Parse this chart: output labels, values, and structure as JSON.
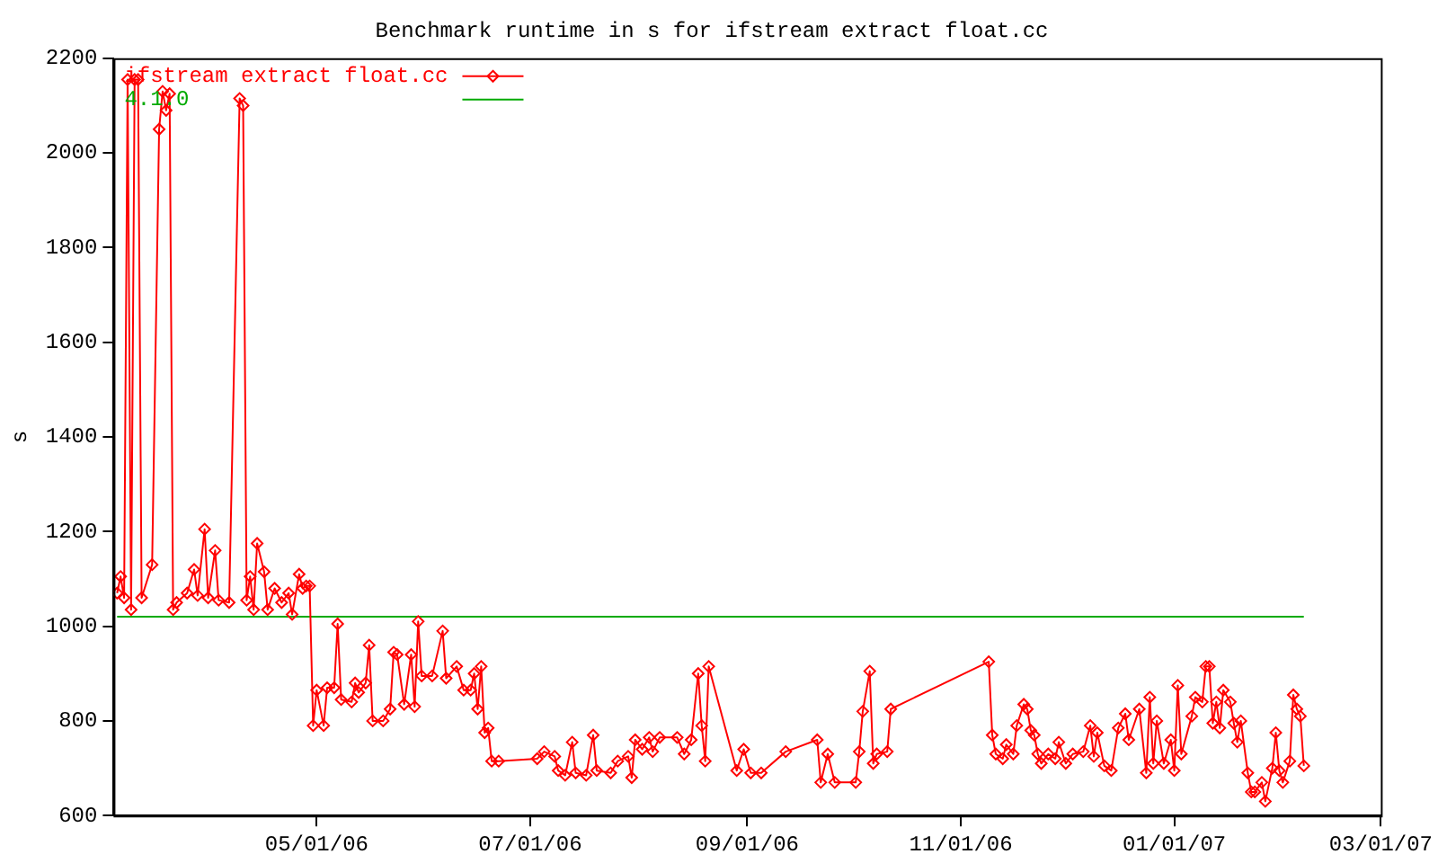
{
  "chart_data": {
    "type": "line",
    "title": "Benchmark runtime in s for ifstream extract float.cc",
    "ylabel": "s",
    "xlim": [
      "2006-03-04",
      "2007-03-01"
    ],
    "xticks": [
      {
        "value": "2006-05-01",
        "label": "05/01/06"
      },
      {
        "value": "2006-07-01",
        "label": "07/01/06"
      },
      {
        "value": "2006-09-01",
        "label": "09/01/06"
      },
      {
        "value": "2006-11-01",
        "label": "11/01/06"
      },
      {
        "value": "2007-01-01",
        "label": "01/01/07"
      },
      {
        "value": "2007-03-01",
        "label": "03/01/07"
      }
    ],
    "ylim": [
      600,
      2200
    ],
    "yticks": [
      600,
      800,
      1000,
      1200,
      1400,
      1600,
      1800,
      2000,
      2200
    ],
    "grid": false,
    "legend": "top left",
    "marker": "diamond",
    "line_style": "solid",
    "series": [
      {
        "name": "ifstream extract float.cc",
        "color": "#ff0000",
        "x": [
          "2006-03-05",
          "2006-03-06",
          "2006-03-07",
          "2006-03-08",
          "2006-03-09",
          "2006-03-10",
          "2006-03-11",
          "2006-03-12",
          "2006-03-15",
          "2006-03-17",
          "2006-03-18",
          "2006-03-19",
          "2006-03-20",
          "2006-03-21",
          "2006-03-22",
          "2006-03-25",
          "2006-03-27",
          "2006-03-28",
          "2006-03-30",
          "2006-03-31",
          "2006-04-02",
          "2006-04-03",
          "2006-04-06",
          "2006-04-09",
          "2006-04-10",
          "2006-04-11",
          "2006-04-12",
          "2006-04-13",
          "2006-04-14",
          "2006-04-16",
          "2006-04-17",
          "2006-04-19",
          "2006-04-21",
          "2006-04-23",
          "2006-04-24",
          "2006-04-26",
          "2006-04-27",
          "2006-04-28",
          "2006-04-29",
          "2006-04-30",
          "2006-05-01",
          "2006-05-03",
          "2006-05-04",
          "2006-05-06",
          "2006-05-07",
          "2006-05-08",
          "2006-05-11",
          "2006-05-12",
          "2006-05-13",
          "2006-05-15",
          "2006-05-16",
          "2006-05-17",
          "2006-05-20",
          "2006-05-22",
          "2006-05-23",
          "2006-05-24",
          "2006-05-26",
          "2006-05-28",
          "2006-05-29",
          "2006-05-30",
          "2006-05-31",
          "2006-06-03",
          "2006-06-06",
          "2006-06-07",
          "2006-06-10",
          "2006-06-12",
          "2006-06-14",
          "2006-06-15",
          "2006-06-16",
          "2006-06-17",
          "2006-06-18",
          "2006-06-19",
          "2006-06-20",
          "2006-06-22",
          "2006-07-03",
          "2006-07-05",
          "2006-07-08",
          "2006-07-09",
          "2006-07-11",
          "2006-07-13",
          "2006-07-14",
          "2006-07-17",
          "2006-07-19",
          "2006-07-20",
          "2006-07-24",
          "2006-07-26",
          "2006-07-29",
          "2006-07-30",
          "2006-07-31",
          "2006-08-02",
          "2006-08-04",
          "2006-08-05",
          "2006-08-07",
          "2006-08-12",
          "2006-08-14",
          "2006-08-16",
          "2006-08-18",
          "2006-08-19",
          "2006-08-20",
          "2006-08-21",
          "2006-08-29",
          "2006-08-31",
          "2006-09-02",
          "2006-09-05",
          "2006-09-12",
          "2006-09-21",
          "2006-09-22",
          "2006-09-24",
          "2006-09-26",
          "2006-10-02",
          "2006-10-03",
          "2006-10-04",
          "2006-10-06",
          "2006-10-07",
          "2006-10-08",
          "2006-10-11",
          "2006-10-12",
          "2006-11-09",
          "2006-11-10",
          "2006-11-11",
          "2006-11-13",
          "2006-11-14",
          "2006-11-16",
          "2006-11-17",
          "2006-11-19",
          "2006-11-20",
          "2006-11-21",
          "2006-11-22",
          "2006-11-23",
          "2006-11-24",
          "2006-11-26",
          "2006-11-28",
          "2006-11-29",
          "2006-12-01",
          "2006-12-03",
          "2006-12-06",
          "2006-12-08",
          "2006-12-09",
          "2006-12-10",
          "2006-12-12",
          "2006-12-14",
          "2006-12-16",
          "2006-12-18",
          "2006-12-19",
          "2006-12-22",
          "2006-12-24",
          "2006-12-25",
          "2006-12-26",
          "2006-12-27",
          "2006-12-29",
          "2006-12-31",
          "2007-01-01",
          "2007-01-02",
          "2007-01-03",
          "2007-01-06",
          "2007-01-07",
          "2007-01-09",
          "2007-01-10",
          "2007-01-11",
          "2007-01-12",
          "2007-01-13",
          "2007-01-14",
          "2007-01-15",
          "2007-01-17",
          "2007-01-18",
          "2007-01-19",
          "2007-01-20",
          "2007-01-22",
          "2007-01-23",
          "2007-01-24",
          "2007-01-26",
          "2007-01-27",
          "2007-01-29",
          "2007-01-30",
          "2007-01-31",
          "2007-02-01",
          "2007-02-03",
          "2007-02-04",
          "2007-02-05",
          "2007-02-06",
          "2007-02-07"
        ],
        "values": [
          1070,
          1105,
          1060,
          2155,
          1035,
          2155,
          2155,
          1060,
          1130,
          2050,
          2130,
          2090,
          2125,
          1035,
          1050,
          1070,
          1120,
          1065,
          1205,
          1060,
          1160,
          1055,
          1050,
          2115,
          2100,
          1055,
          1105,
          1035,
          1175,
          1115,
          1035,
          1080,
          1050,
          1070,
          1025,
          1110,
          1080,
          1085,
          1085,
          790,
          865,
          790,
          870,
          870,
          1005,
          845,
          840,
          880,
          860,
          880,
          960,
          800,
          800,
          825,
          945,
          940,
          835,
          940,
          830,
          1010,
          895,
          895,
          990,
          890,
          915,
          865,
          865,
          900,
          825,
          915,
          775,
          785,
          715,
          715,
          720,
          735,
          725,
          695,
          685,
          755,
          690,
          685,
          770,
          695,
          690,
          715,
          725,
          680,
          760,
          740,
          765,
          735,
          765,
          765,
          730,
          760,
          900,
          790,
          715,
          915,
          695,
          740,
          690,
          690,
          735,
          760,
          670,
          730,
          670,
          670,
          735,
          820,
          905,
          710,
          730,
          735,
          825,
          925,
          770,
          730,
          720,
          750,
          730,
          790,
          835,
          825,
          780,
          770,
          730,
          710,
          730,
          720,
          755,
          710,
          730,
          735,
          790,
          725,
          775,
          705,
          695,
          785,
          815,
          760,
          825,
          690,
          850,
          710,
          800,
          710,
          760,
          695,
          875,
          730,
          810,
          850,
          840,
          915,
          915,
          795,
          840,
          785,
          865,
          840,
          795,
          755,
          800,
          690,
          650,
          650,
          670,
          630,
          700,
          775,
          695,
          670,
          715,
          855,
          825,
          810,
          705
        ]
      },
      {
        "name": "4.1.0",
        "color": "#00aa00",
        "marker": "none",
        "x": [
          "2006-03-05",
          "2007-02-07"
        ],
        "values": [
          1020,
          1020
        ]
      }
    ]
  }
}
